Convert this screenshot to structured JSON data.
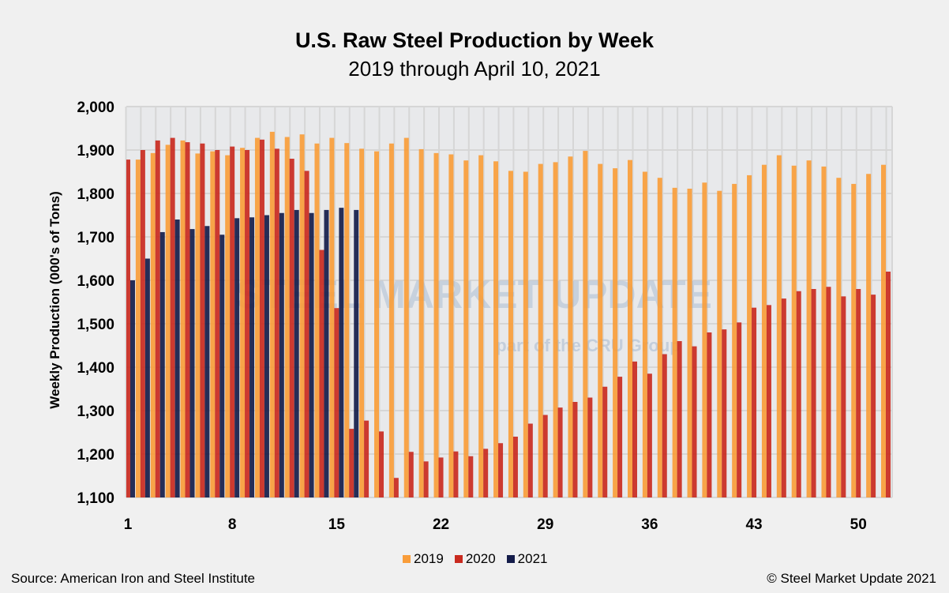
{
  "chart_data": {
    "type": "bar",
    "title": "U.S. Raw Steel Production by Week",
    "subtitle": "2019 through April 10, 2021",
    "ylabel": "Weekly Production (000's of Tons)",
    "xlabel": "",
    "ylim": [
      1100,
      2000
    ],
    "yticks": [
      "1,100",
      "1,200",
      "1,300",
      "1,400",
      "1,500",
      "1,600",
      "1,700",
      "1,800",
      "1,900",
      "2,000"
    ],
    "xticks": [
      "1",
      "8",
      "15",
      "22",
      "29",
      "36",
      "43",
      "50"
    ],
    "grid": true,
    "legend_position": "bottom",
    "weeks": [
      1,
      2,
      3,
      4,
      5,
      6,
      7,
      8,
      9,
      10,
      11,
      12,
      13,
      14,
      15,
      16,
      17,
      18,
      19,
      20,
      21,
      22,
      23,
      24,
      25,
      26,
      27,
      28,
      29,
      30,
      31,
      32,
      33,
      34,
      35,
      36,
      37,
      38,
      39,
      40,
      41,
      42,
      43,
      44,
      45,
      46,
      47,
      48,
      49,
      50,
      51,
      52
    ],
    "series": [
      {
        "name": "2019",
        "color": "#f99d3a",
        "values": [
          1878,
          1878,
          1893,
          1912,
          1922,
          1892,
          1897,
          1888,
          1905,
          1928,
          1942,
          1930,
          1936,
          1915,
          1928,
          1916,
          1903,
          1897,
          1915,
          1928,
          1902,
          1893,
          1890,
          1876,
          1888,
          1874,
          1852,
          1850,
          1868,
          1872,
          1885,
          1898,
          1868,
          1858,
          1877,
          1850,
          1836,
          1813,
          1811,
          1825,
          1806,
          1822,
          1842,
          1866,
          1888,
          1864,
          1876,
          1862,
          1836,
          1822,
          1845,
          1866
        ]
      },
      {
        "name": "2020",
        "color": "#c92a1f",
        "values": [
          1878,
          1900,
          1922,
          1928,
          1918,
          1915,
          1900,
          1908,
          1900,
          1924,
          1903,
          1880,
          1852,
          1670,
          1536,
          1258,
          1277,
          1252,
          1145,
          1205,
          1183,
          1192,
          1206,
          1195,
          1212,
          1225,
          1240,
          1270,
          1290,
          1307,
          1320,
          1330,
          1355,
          1378,
          1413,
          1385,
          1430,
          1460,
          1448,
          1480,
          1487,
          1503,
          1537,
          1543,
          1558,
          1575,
          1580,
          1585,
          1563,
          1580,
          1567,
          1620
        ]
      },
      {
        "name": "2021",
        "color": "#141c4a",
        "values": [
          1600,
          1650,
          1711,
          1740,
          1718,
          1725,
          1705,
          1743,
          1745,
          1750,
          1755,
          1762,
          1755,
          1762,
          1767,
          1762
        ]
      }
    ]
  },
  "watermark": {
    "brand": "STEEL MARKET UPDATE",
    "tagline": "part of the CRU Group"
  },
  "footer": {
    "source": "Source: American Iron and Steel Institute",
    "copyright": "© Steel Market Update 2021"
  }
}
